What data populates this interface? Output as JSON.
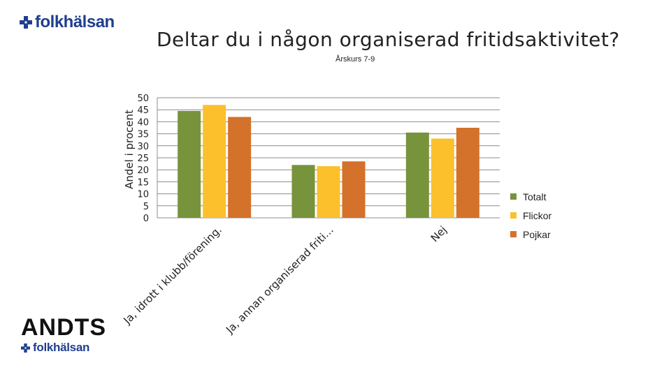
{
  "branding": {
    "logo_top": "folkhälsan",
    "logo_bottom": "folkhälsan",
    "andts": "ANDTS",
    "logo_color": "#1f3f8f"
  },
  "chart_data": {
    "type": "bar",
    "title": "Deltar du i någon organiserad fritidsaktivitet?",
    "subtitle": "Årskurs 7-9",
    "ylabel": "Andel i procent",
    "xlabel": "",
    "ylim": [
      0,
      50
    ],
    "yticks": [
      0,
      5,
      10,
      15,
      20,
      25,
      30,
      35,
      40,
      45,
      50
    ],
    "grid": true,
    "legend_position": "right",
    "categories": [
      "Ja, idrott i klubb/förening",
      "Ja, annan organiserad friti…",
      "Nej"
    ],
    "category_labels_display": [
      "Ja, idrott i klubb/förening.",
      "Ja, annan organiserad friti…",
      "Nej"
    ],
    "series": [
      {
        "name": "Totalt",
        "color": "#77933c",
        "values": [
          44.5,
          22,
          35.5
        ]
      },
      {
        "name": "Flickor",
        "color": "#fcc02c",
        "values": [
          47,
          21.5,
          33
        ]
      },
      {
        "name": "Pojkar",
        "color": "#d4712a",
        "values": [
          42,
          23.5,
          37.5
        ]
      }
    ]
  }
}
